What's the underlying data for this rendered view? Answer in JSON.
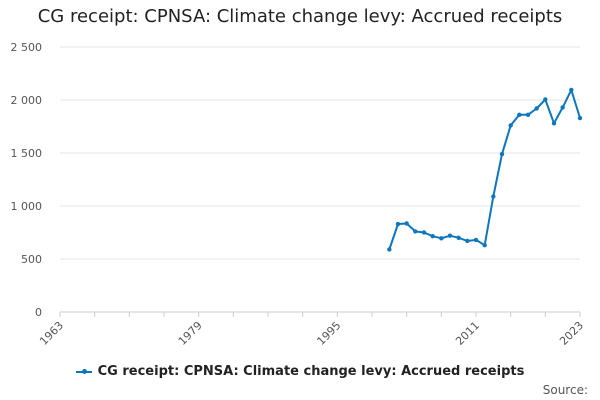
{
  "title": "CG receipt: CPNSA: Climate change levy: Accrued receipts",
  "source_label": "Source:",
  "colors": {
    "series": "#0e76bc",
    "grid": "#e6e6e6",
    "axis": "#cccccc"
  },
  "chart_data": {
    "type": "line",
    "title": "CG receipt: CPNSA: Climate change levy: Accrued receipts",
    "xlabel": "",
    "ylabel": "",
    "xlim": [
      1963,
      2023
    ],
    "ylim": [
      0,
      2500
    ],
    "x_ticks": [
      "1963",
      "1979",
      "1995",
      "2011",
      "2023"
    ],
    "y_ticks": [
      "0",
      "500",
      "1 000",
      "1 500",
      "2 000",
      "2 500"
    ],
    "y_tick_values": [
      0,
      500,
      1000,
      1500,
      2000,
      2500
    ],
    "grid": true,
    "legend_position": "bottom",
    "series": [
      {
        "name": "CG receipt: CPNSA: Climate change levy: Accrued receipts",
        "x": [
          2001,
          2002,
          2003,
          2004,
          2005,
          2006,
          2007,
          2008,
          2009,
          2010,
          2011,
          2012,
          2013,
          2014,
          2015,
          2016,
          2017,
          2018,
          2019,
          2020,
          2021,
          2022,
          2023
        ],
        "values": [
          590,
          830,
          835,
          760,
          750,
          715,
          695,
          720,
          700,
          670,
          680,
          630,
          1090,
          1490,
          1760,
          1860,
          1860,
          1920,
          2005,
          1780,
          1930,
          2095,
          1830
        ]
      }
    ]
  }
}
